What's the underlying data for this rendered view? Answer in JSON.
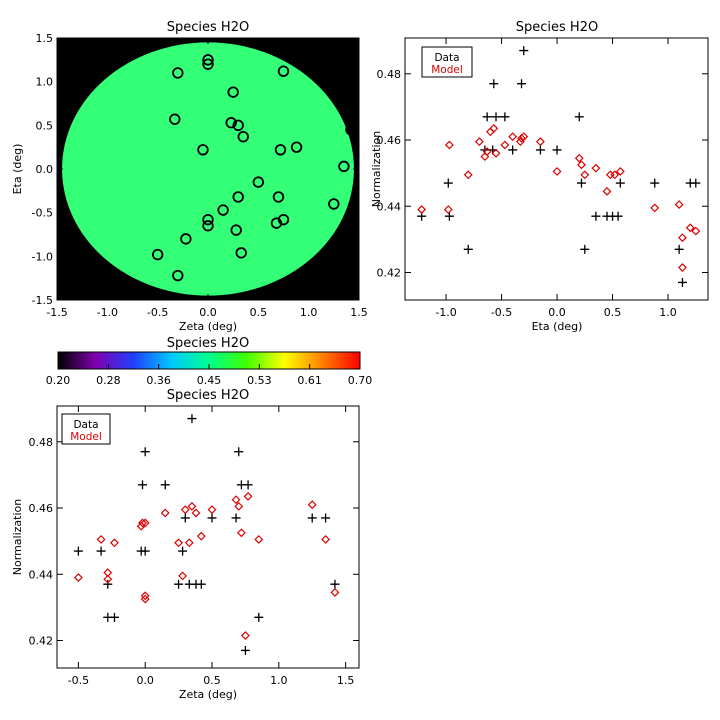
{
  "chart_data": [
    {
      "id": "map",
      "type": "scatter",
      "title": "Species H2O",
      "xlabel": "Zeta (deg)",
      "ylabel": "Eta (deg)",
      "xlim": [
        -1.5,
        1.5
      ],
      "ylim": [
        -1.5,
        1.5
      ],
      "xticks": [
        "-1.5",
        "-1.0",
        "-0.5",
        "0.0",
        "0.5",
        "1.0",
        "1.5"
      ],
      "yticks": [
        "-1.5",
        "-1.0",
        "-0.5",
        "0.0",
        "0.5",
        "1.0",
        "1.5"
      ],
      "background": "#000000",
      "disk_color": "#33ff77",
      "disk_radius": 1.45,
      "marker": "circle",
      "marker_color": "#000000",
      "points": [
        [
          -0.3,
          1.1
        ],
        [
          0.0,
          1.25
        ],
        [
          0.0,
          1.2
        ],
        [
          0.75,
          1.12
        ],
        [
          0.25,
          0.88
        ],
        [
          -0.33,
          0.57
        ],
        [
          0.23,
          0.53
        ],
        [
          0.3,
          0.5
        ],
        [
          1.42,
          0.45
        ],
        [
          0.35,
          0.37
        ],
        [
          -0.05,
          0.22
        ],
        [
          0.72,
          0.22
        ],
        [
          0.88,
          0.25
        ],
        [
          1.35,
          0.03
        ],
        [
          0.5,
          -0.15
        ],
        [
          0.3,
          -0.32
        ],
        [
          0.7,
          -0.32
        ],
        [
          1.25,
          -0.4
        ],
        [
          0.15,
          -0.47
        ],
        [
          0.0,
          -0.58
        ],
        [
          0.75,
          -0.58
        ],
        [
          0.0,
          -0.65
        ],
        [
          0.68,
          -0.62
        ],
        [
          -0.22,
          -0.8
        ],
        [
          0.28,
          -0.7
        ],
        [
          -0.5,
          -0.98
        ],
        [
          0.33,
          -0.96
        ],
        [
          -0.3,
          -1.22
        ]
      ]
    },
    {
      "id": "colorbar",
      "type": "heatmap",
      "title": "Species H2O",
      "ticks": [
        "0.20",
        "0.28",
        "0.36",
        "0.45",
        "0.53",
        "0.61",
        "0.70"
      ],
      "range": [
        0.2,
        0.7
      ],
      "colormap": [
        "#000000",
        "#7f00b0",
        "#2040ff",
        "#00c8ff",
        "#00ff90",
        "#40ff00",
        "#ffff00",
        "#ff8000",
        "#ff0000"
      ]
    },
    {
      "id": "eta",
      "type": "scatter",
      "title": "Species H2O",
      "xlabel": "Eta (deg)",
      "ylabel": "Normalization",
      "xlim": [
        -1.37,
        1.36
      ],
      "ylim": [
        0.4117,
        0.4908
      ],
      "xticks": [
        -1.0,
        -0.5,
        0.0,
        0.5,
        1.0
      ],
      "xtick_labels": [
        "-1.0",
        "-0.5",
        "0.0",
        "0.5",
        "1.0"
      ],
      "yticks": [
        0.42,
        0.44,
        0.46,
        0.48
      ],
      "ytick_labels": [
        "0.42",
        "0.44",
        "0.46",
        "0.48"
      ],
      "legend": {
        "placement": "top-left",
        "entries": [
          "Data",
          "Model"
        ],
        "colors": [
          "#000000",
          "#dd0000"
        ]
      },
      "series": [
        {
          "name": "Data",
          "marker": "plus",
          "color": "#000000",
          "points": [
            [
              -1.22,
              0.437
            ],
            [
              -0.98,
              0.447
            ],
            [
              -0.97,
              0.437
            ],
            [
              -0.8,
              0.427
            ],
            [
              -0.65,
              0.457
            ],
            [
              -0.63,
              0.467
            ],
            [
              -0.58,
              0.457
            ],
            [
              -0.57,
              0.477
            ],
            [
              -0.55,
              0.467
            ],
            [
              -0.47,
              0.467
            ],
            [
              -0.4,
              0.457
            ],
            [
              -0.32,
              0.477
            ],
            [
              -0.3,
              0.487
            ],
            [
              -0.15,
              0.457
            ],
            [
              0.0,
              0.457
            ],
            [
              0.2,
              0.467
            ],
            [
              0.22,
              0.447
            ],
            [
              0.25,
              0.427
            ],
            [
              0.35,
              0.437
            ],
            [
              0.45,
              0.437
            ],
            [
              0.5,
              0.437
            ],
            [
              0.55,
              0.437
            ],
            [
              0.57,
              0.447
            ],
            [
              0.88,
              0.447
            ],
            [
              1.1,
              0.427
            ],
            [
              1.13,
              0.417
            ],
            [
              1.2,
              0.447
            ],
            [
              1.25,
              0.447
            ]
          ]
        },
        {
          "name": "Model",
          "marker": "diamond",
          "color": "#dd0000",
          "points": [
            [
              -1.22,
              0.439
            ],
            [
              -0.98,
              0.439
            ],
            [
              -0.97,
              0.4585
            ],
            [
              -0.8,
              0.4495
            ],
            [
              -0.7,
              0.4595
            ],
            [
              -0.65,
              0.455
            ],
            [
              -0.63,
              0.4565
            ],
            [
              -0.6,
              0.4625
            ],
            [
              -0.57,
              0.4635
            ],
            [
              -0.55,
              0.456
            ],
            [
              -0.47,
              0.4585
            ],
            [
              -0.4,
              0.461
            ],
            [
              -0.32,
              0.4605
            ],
            [
              -0.3,
              0.461
            ],
            [
              -0.33,
              0.4595
            ],
            [
              -0.15,
              0.4595
            ],
            [
              0.0,
              0.4505
            ],
            [
              0.2,
              0.4545
            ],
            [
              0.22,
              0.4525
            ],
            [
              0.25,
              0.4495
            ],
            [
              0.35,
              0.4515
            ],
            [
              0.45,
              0.4445
            ],
            [
              0.48,
              0.4495
            ],
            [
              0.52,
              0.4495
            ],
            [
              0.57,
              0.4505
            ],
            [
              0.88,
              0.4395
            ],
            [
              1.1,
              0.4405
            ],
            [
              1.13,
              0.4305
            ],
            [
              1.13,
              0.4215
            ],
            [
              1.2,
              0.4335
            ],
            [
              1.25,
              0.4325
            ]
          ]
        }
      ]
    },
    {
      "id": "zeta",
      "type": "scatter",
      "title": "Species H2O",
      "xlabel": "Zeta (deg)",
      "ylabel": "Normalization",
      "xlim": [
        -0.66,
        1.6
      ],
      "ylim": [
        0.4117,
        0.4908
      ],
      "xticks": [
        -0.5,
        0.0,
        0.5,
        1.0,
        1.5
      ],
      "xtick_labels": [
        "-0.5",
        "0.0",
        "0.5",
        "1.0",
        "1.5"
      ],
      "yticks": [
        0.42,
        0.44,
        0.46,
        0.48
      ],
      "ytick_labels": [
        "0.42",
        "0.44",
        "0.46",
        "0.48"
      ],
      "legend": {
        "placement": "top-left",
        "entries": [
          "Data",
          "Model"
        ],
        "colors": [
          "#000000",
          "#dd0000"
        ]
      },
      "series": [
        {
          "name": "Data",
          "marker": "plus",
          "color": "#000000",
          "points": [
            [
              -0.5,
              0.447
            ],
            [
              -0.33,
              0.447
            ],
            [
              -0.28,
              0.437
            ],
            [
              -0.28,
              0.427
            ],
            [
              -0.23,
              0.427
            ],
            [
              -0.03,
              0.447
            ],
            [
              -0.02,
              0.467
            ],
            [
              0.0,
              0.477
            ],
            [
              0.0,
              0.447
            ],
            [
              0.15,
              0.467
            ],
            [
              0.25,
              0.437
            ],
            [
              0.28,
              0.447
            ],
            [
              0.3,
              0.457
            ],
            [
              0.33,
              0.437
            ],
            [
              0.35,
              0.487
            ],
            [
              0.38,
              0.437
            ],
            [
              0.42,
              0.437
            ],
            [
              0.5,
              0.457
            ],
            [
              0.68,
              0.457
            ],
            [
              0.7,
              0.477
            ],
            [
              0.72,
              0.467
            ],
            [
              0.75,
              0.417
            ],
            [
              0.77,
              0.467
            ],
            [
              0.85,
              0.427
            ],
            [
              1.25,
              0.457
            ],
            [
              1.35,
              0.457
            ],
            [
              1.42,
              0.437
            ]
          ]
        },
        {
          "name": "Model",
          "marker": "diamond",
          "color": "#dd0000",
          "points": [
            [
              -0.5,
              0.439
            ],
            [
              -0.33,
              0.4505
            ],
            [
              -0.28,
              0.4405
            ],
            [
              -0.28,
              0.4385
            ],
            [
              -0.23,
              0.4495
            ],
            [
              -0.03,
              0.4545
            ],
            [
              -0.02,
              0.4555
            ],
            [
              0.0,
              0.4555
            ],
            [
              0.0,
              0.4335
            ],
            [
              0.0,
              0.4325
            ],
            [
              0.15,
              0.4585
            ],
            [
              0.25,
              0.4495
            ],
            [
              0.28,
              0.4395
            ],
            [
              0.3,
              0.4595
            ],
            [
              0.33,
              0.4495
            ],
            [
              0.35,
              0.4605
            ],
            [
              0.38,
              0.4585
            ],
            [
              0.42,
              0.4515
            ],
            [
              0.5,
              0.4595
            ],
            [
              0.68,
              0.4625
            ],
            [
              0.7,
              0.4605
            ],
            [
              0.72,
              0.4525
            ],
            [
              0.75,
              0.4215
            ],
            [
              0.77,
              0.4635
            ],
            [
              0.85,
              0.4505
            ],
            [
              1.25,
              0.461
            ],
            [
              1.35,
              0.4505
            ],
            [
              1.42,
              0.4345
            ]
          ]
        }
      ]
    }
  ]
}
